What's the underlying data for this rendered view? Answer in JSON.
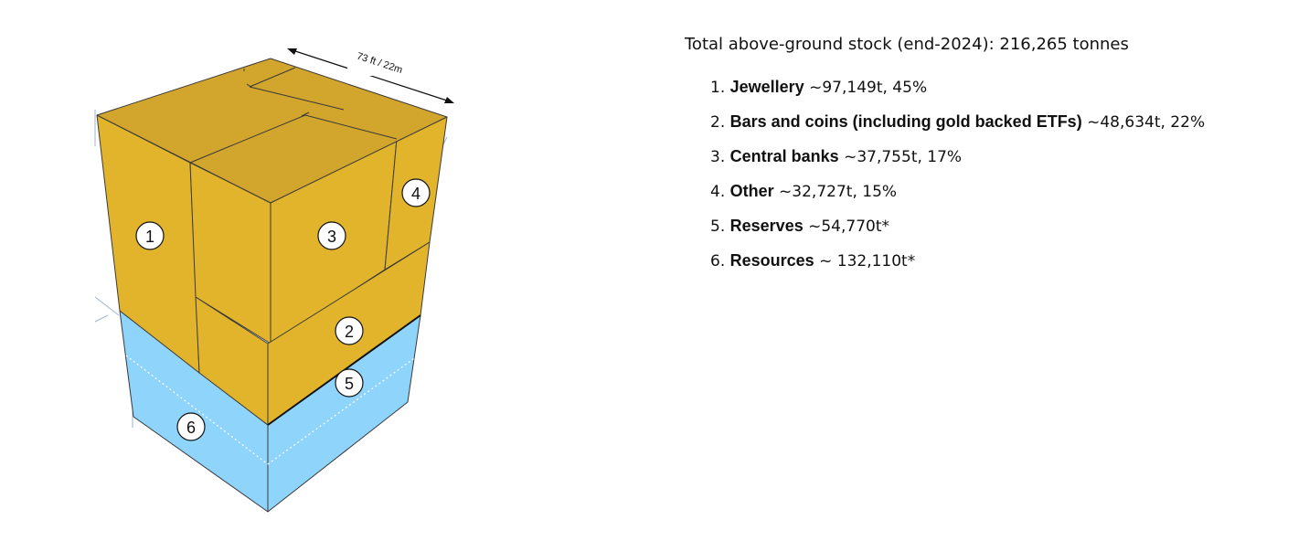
{
  "figure": {
    "dimension_label": "73 ft / 22m",
    "blocks": [
      {
        "id": "1",
        "name": "Jewellery",
        "color": "#e1b42b"
      },
      {
        "id": "2",
        "name": "Bars and coins (including gold backed ETFs)",
        "color": "#e1b42b"
      },
      {
        "id": "3",
        "name": "Central banks",
        "color": "#e1b42b"
      },
      {
        "id": "4",
        "name": "Other",
        "color": "#e1b42b"
      },
      {
        "id": "5",
        "name": "Reserves",
        "color": "#8ed4fb"
      },
      {
        "id": "6",
        "name": "Resources",
        "color": "#8ed4fb"
      }
    ],
    "colors": {
      "gold_left": "#e1b42b",
      "gold_right": "#e1b42b",
      "gold_top": "#d2a52c",
      "blue_left": "#8ed4fb",
      "blue_right": "#8ed4fb"
    }
  },
  "legend": {
    "title": "Total above-ground stock (end-2024): 216,265 tonnes",
    "items": [
      {
        "number": "1.",
        "name": "Jewellery",
        "detail": " ~97,149t, 45%"
      },
      {
        "number": "2.",
        "name": "Bars and coins (including gold backed ETFs)",
        "detail": " ~48,634t, 22%"
      },
      {
        "number": "3.",
        "name": "Central banks",
        "detail": " ~37,755t, 17%"
      },
      {
        "number": "4.",
        "name": "Other",
        "detail": " ~32,727t, 15%"
      },
      {
        "number": "5.",
        "name": "Reserves",
        "detail": " ~54,770t*"
      },
      {
        "number": "6.",
        "name": "Resources",
        "detail": " ~ 132,110t*"
      }
    ]
  }
}
